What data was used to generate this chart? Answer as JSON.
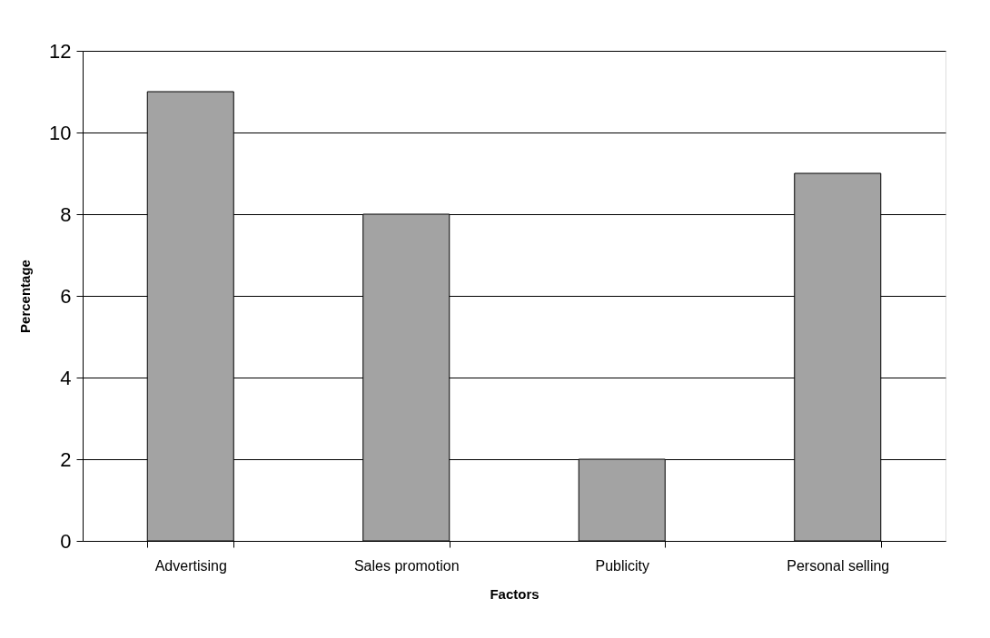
{
  "chart_data": {
    "type": "bar",
    "xlabel": "Factors",
    "ylabel": "Percentage",
    "categories": [
      "Advertising",
      "Sales promotion",
      "Publicity",
      "Personal selling"
    ],
    "values": [
      11,
      8,
      2,
      9
    ],
    "color": "#a3a3a3",
    "ylim": [
      0,
      12
    ],
    "yticks": [
      0,
      2,
      4,
      6,
      8,
      10,
      12
    ],
    "grid": "y"
  }
}
